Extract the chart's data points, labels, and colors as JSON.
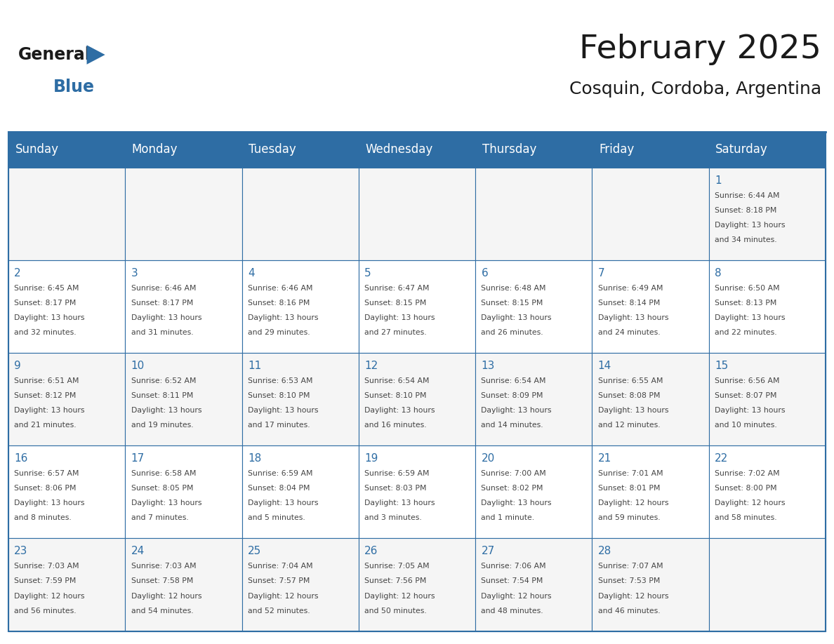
{
  "title": "February 2025",
  "subtitle": "Cosquin, Cordoba, Argentina",
  "header_bg": "#2E6DA4",
  "header_text_color": "#FFFFFF",
  "border_color": "#2E6DA4",
  "day_headers": [
    "Sunday",
    "Monday",
    "Tuesday",
    "Wednesday",
    "Thursday",
    "Friday",
    "Saturday"
  ],
  "days": [
    {
      "day": 1,
      "col": 6,
      "row": 0,
      "sunrise": "6:44 AM",
      "sunset": "8:18 PM",
      "daylight_line1": "Daylight: 13 hours",
      "daylight_line2": "and 34 minutes."
    },
    {
      "day": 2,
      "col": 0,
      "row": 1,
      "sunrise": "6:45 AM",
      "sunset": "8:17 PM",
      "daylight_line1": "Daylight: 13 hours",
      "daylight_line2": "and 32 minutes."
    },
    {
      "day": 3,
      "col": 1,
      "row": 1,
      "sunrise": "6:46 AM",
      "sunset": "8:17 PM",
      "daylight_line1": "Daylight: 13 hours",
      "daylight_line2": "and 31 minutes."
    },
    {
      "day": 4,
      "col": 2,
      "row": 1,
      "sunrise": "6:46 AM",
      "sunset": "8:16 PM",
      "daylight_line1": "Daylight: 13 hours",
      "daylight_line2": "and 29 minutes."
    },
    {
      "day": 5,
      "col": 3,
      "row": 1,
      "sunrise": "6:47 AM",
      "sunset": "8:15 PM",
      "daylight_line1": "Daylight: 13 hours",
      "daylight_line2": "and 27 minutes."
    },
    {
      "day": 6,
      "col": 4,
      "row": 1,
      "sunrise": "6:48 AM",
      "sunset": "8:15 PM",
      "daylight_line1": "Daylight: 13 hours",
      "daylight_line2": "and 26 minutes."
    },
    {
      "day": 7,
      "col": 5,
      "row": 1,
      "sunrise": "6:49 AM",
      "sunset": "8:14 PM",
      "daylight_line1": "Daylight: 13 hours",
      "daylight_line2": "and 24 minutes."
    },
    {
      "day": 8,
      "col": 6,
      "row": 1,
      "sunrise": "6:50 AM",
      "sunset": "8:13 PM",
      "daylight_line1": "Daylight: 13 hours",
      "daylight_line2": "and 22 minutes."
    },
    {
      "day": 9,
      "col": 0,
      "row": 2,
      "sunrise": "6:51 AM",
      "sunset": "8:12 PM",
      "daylight_line1": "Daylight: 13 hours",
      "daylight_line2": "and 21 minutes."
    },
    {
      "day": 10,
      "col": 1,
      "row": 2,
      "sunrise": "6:52 AM",
      "sunset": "8:11 PM",
      "daylight_line1": "Daylight: 13 hours",
      "daylight_line2": "and 19 minutes."
    },
    {
      "day": 11,
      "col": 2,
      "row": 2,
      "sunrise": "6:53 AM",
      "sunset": "8:10 PM",
      "daylight_line1": "Daylight: 13 hours",
      "daylight_line2": "and 17 minutes."
    },
    {
      "day": 12,
      "col": 3,
      "row": 2,
      "sunrise": "6:54 AM",
      "sunset": "8:10 PM",
      "daylight_line1": "Daylight: 13 hours",
      "daylight_line2": "and 16 minutes."
    },
    {
      "day": 13,
      "col": 4,
      "row": 2,
      "sunrise": "6:54 AM",
      "sunset": "8:09 PM",
      "daylight_line1": "Daylight: 13 hours",
      "daylight_line2": "and 14 minutes."
    },
    {
      "day": 14,
      "col": 5,
      "row": 2,
      "sunrise": "6:55 AM",
      "sunset": "8:08 PM",
      "daylight_line1": "Daylight: 13 hours",
      "daylight_line2": "and 12 minutes."
    },
    {
      "day": 15,
      "col": 6,
      "row": 2,
      "sunrise": "6:56 AM",
      "sunset": "8:07 PM",
      "daylight_line1": "Daylight: 13 hours",
      "daylight_line2": "and 10 minutes."
    },
    {
      "day": 16,
      "col": 0,
      "row": 3,
      "sunrise": "6:57 AM",
      "sunset": "8:06 PM",
      "daylight_line1": "Daylight: 13 hours",
      "daylight_line2": "and 8 minutes."
    },
    {
      "day": 17,
      "col": 1,
      "row": 3,
      "sunrise": "6:58 AM",
      "sunset": "8:05 PM",
      "daylight_line1": "Daylight: 13 hours",
      "daylight_line2": "and 7 minutes."
    },
    {
      "day": 18,
      "col": 2,
      "row": 3,
      "sunrise": "6:59 AM",
      "sunset": "8:04 PM",
      "daylight_line1": "Daylight: 13 hours",
      "daylight_line2": "and 5 minutes."
    },
    {
      "day": 19,
      "col": 3,
      "row": 3,
      "sunrise": "6:59 AM",
      "sunset": "8:03 PM",
      "daylight_line1": "Daylight: 13 hours",
      "daylight_line2": "and 3 minutes."
    },
    {
      "day": 20,
      "col": 4,
      "row": 3,
      "sunrise": "7:00 AM",
      "sunset": "8:02 PM",
      "daylight_line1": "Daylight: 13 hours",
      "daylight_line2": "and 1 minute."
    },
    {
      "day": 21,
      "col": 5,
      "row": 3,
      "sunrise": "7:01 AM",
      "sunset": "8:01 PM",
      "daylight_line1": "Daylight: 12 hours",
      "daylight_line2": "and 59 minutes."
    },
    {
      "day": 22,
      "col": 6,
      "row": 3,
      "sunrise": "7:02 AM",
      "sunset": "8:00 PM",
      "daylight_line1": "Daylight: 12 hours",
      "daylight_line2": "and 58 minutes."
    },
    {
      "day": 23,
      "col": 0,
      "row": 4,
      "sunrise": "7:03 AM",
      "sunset": "7:59 PM",
      "daylight_line1": "Daylight: 12 hours",
      "daylight_line2": "and 56 minutes."
    },
    {
      "day": 24,
      "col": 1,
      "row": 4,
      "sunrise": "7:03 AM",
      "sunset": "7:58 PM",
      "daylight_line1": "Daylight: 12 hours",
      "daylight_line2": "and 54 minutes."
    },
    {
      "day": 25,
      "col": 2,
      "row": 4,
      "sunrise": "7:04 AM",
      "sunset": "7:57 PM",
      "daylight_line1": "Daylight: 12 hours",
      "daylight_line2": "and 52 minutes."
    },
    {
      "day": 26,
      "col": 3,
      "row": 4,
      "sunrise": "7:05 AM",
      "sunset": "7:56 PM",
      "daylight_line1": "Daylight: 12 hours",
      "daylight_line2": "and 50 minutes."
    },
    {
      "day": 27,
      "col": 4,
      "row": 4,
      "sunrise": "7:06 AM",
      "sunset": "7:54 PM",
      "daylight_line1": "Daylight: 12 hours",
      "daylight_line2": "and 48 minutes."
    },
    {
      "day": 28,
      "col": 5,
      "row": 4,
      "sunrise": "7:07 AM",
      "sunset": "7:53 PM",
      "daylight_line1": "Daylight: 12 hours",
      "daylight_line2": "and 46 minutes."
    }
  ],
  "num_rows": 5,
  "num_cols": 7,
  "logo_text_general": "General",
  "logo_text_blue": "Blue",
  "logo_color_general": "#1a1a1a",
  "logo_color_blue": "#2E6DA4",
  "logo_triangle_color": "#2E6DA4",
  "title_fontsize": 34,
  "subtitle_fontsize": 18,
  "header_fontsize": 12,
  "day_num_fontsize": 11,
  "cell_text_fontsize": 7.8,
  "cell_bg_even": "#F5F5F5",
  "cell_bg_odd": "#FFFFFF"
}
